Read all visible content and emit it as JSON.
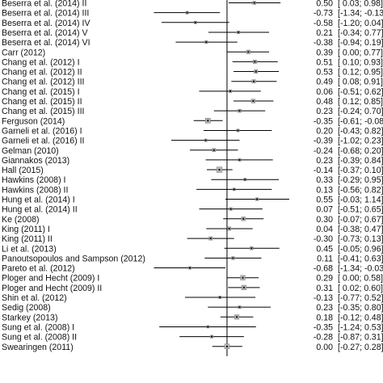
{
  "chart_data": {
    "type": "forest",
    "title": "",
    "xlabel": "",
    "ylabel": "",
    "x_range": [
      -1.45,
      1.2
    ],
    "null_line": 0,
    "studies": [
      {
        "label": "Beserra et al. (2014) II",
        "estimate": 0.5,
        "ci_low": 0.03,
        "ci_high": 0.98,
        "estimate_text": "0.50",
        "ci_text": "[ 0.03; 0.98]"
      },
      {
        "label": "Beserra et al. (2014) III",
        "estimate": -0.73,
        "ci_low": -1.34,
        "ci_high": -0.13,
        "estimate_text": "-0.73",
        "ci_text": "[-1.34; -0.13]"
      },
      {
        "label": "Beserra et al. (2014) IV",
        "estimate": -0.58,
        "ci_low": -1.2,
        "ci_high": 0.04,
        "estimate_text": "-0.58",
        "ci_text": "[-1.20; 0.04]"
      },
      {
        "label": "Beserra et al. (2014) V",
        "estimate": 0.21,
        "ci_low": -0.34,
        "ci_high": 0.77,
        "estimate_text": "0.21",
        "ci_text": "[-0.34; 0.77]"
      },
      {
        "label": "Beserra et al. (2014) VI",
        "estimate": -0.38,
        "ci_low": -0.94,
        "ci_high": 0.19,
        "estimate_text": "-0.38",
        "ci_text": "[-0.94; 0.19]"
      },
      {
        "label": "Carr (2012)",
        "estimate": 0.39,
        "ci_low": 0.0,
        "ci_high": 0.77,
        "estimate_text": "0.39",
        "ci_text": "[ 0.00; 0.77]"
      },
      {
        "label": "Chang et al. (2012) I",
        "estimate": 0.51,
        "ci_low": 0.1,
        "ci_high": 0.93,
        "estimate_text": "0.51",
        "ci_text": "[ 0.10; 0.93]"
      },
      {
        "label": "Chang et al. (2012) II",
        "estimate": 0.53,
        "ci_low": 0.12,
        "ci_high": 0.95,
        "estimate_text": "0.53",
        "ci_text": "[ 0.12; 0.95]"
      },
      {
        "label": "Chang et al. (2012) III",
        "estimate": 0.49,
        "ci_low": 0.08,
        "ci_high": 0.91,
        "estimate_text": "0.49",
        "ci_text": "[ 0.08; 0.91]"
      },
      {
        "label": "Chang et al. (2015) I",
        "estimate": 0.06,
        "ci_low": -0.51,
        "ci_high": 0.62,
        "estimate_text": "0.06",
        "ci_text": "[-0.51; 0.62]"
      },
      {
        "label": "Chang et al. (2015) II",
        "estimate": 0.48,
        "ci_low": 0.12,
        "ci_high": 0.85,
        "estimate_text": "0.48",
        "ci_text": "[ 0.12; 0.85]"
      },
      {
        "label": "Chang et al. (2015) III",
        "estimate": 0.23,
        "ci_low": -0.24,
        "ci_high": 0.7,
        "estimate_text": "0.23",
        "ci_text": "[-0.24; 0.70]"
      },
      {
        "label": "Ferguson (2014)",
        "estimate": -0.35,
        "ci_low": -0.61,
        "ci_high": -0.08,
        "estimate_text": "-0.35",
        "ci_text": "[-0.61; -0.08]"
      },
      {
        "label": "Garneli et al. (2016) I",
        "estimate": 0.2,
        "ci_low": -0.43,
        "ci_high": 0.82,
        "estimate_text": "0.20",
        "ci_text": "[-0.43; 0.82]"
      },
      {
        "label": "Garneli et al. (2016) II",
        "estimate": -0.39,
        "ci_low": -1.02,
        "ci_high": 0.23,
        "estimate_text": "-0.39",
        "ci_text": "[-1.02; 0.23]"
      },
      {
        "label": "Gelman (2010)",
        "estimate": -0.24,
        "ci_low": -0.68,
        "ci_high": 0.2,
        "estimate_text": "-0.24",
        "ci_text": "[-0.68; 0.20]"
      },
      {
        "label": "Giannakos (2013)",
        "estimate": 0.23,
        "ci_low": -0.39,
        "ci_high": 0.84,
        "estimate_text": "0.23",
        "ci_text": "[-0.39; 0.84]"
      },
      {
        "label": "Hall (2015)",
        "estimate": -0.14,
        "ci_low": -0.37,
        "ci_high": 0.1,
        "estimate_text": "-0.14",
        "ci_text": "[-0.37; 0.10]"
      },
      {
        "label": "Hawkins (2008) I",
        "estimate": 0.33,
        "ci_low": -0.29,
        "ci_high": 0.95,
        "estimate_text": "0.33",
        "ci_text": "[-0.29; 0.95]"
      },
      {
        "label": "Hawkins (2008) II",
        "estimate": 0.13,
        "ci_low": -0.56,
        "ci_high": 0.82,
        "estimate_text": "0.13",
        "ci_text": "[-0.56; 0.82]"
      },
      {
        "label": "Hung et al. (2014) I",
        "estimate": 0.55,
        "ci_low": -0.03,
        "ci_high": 1.14,
        "estimate_text": "0.55",
        "ci_text": "[-0.03; 1.14]"
      },
      {
        "label": "Hung et al. (2014) II",
        "estimate": 0.07,
        "ci_low": -0.51,
        "ci_high": 0.65,
        "estimate_text": "0.07",
        "ci_text": "[-0.51; 0.65]"
      },
      {
        "label": "Ke (2008)",
        "estimate": 0.3,
        "ci_low": -0.07,
        "ci_high": 0.67,
        "estimate_text": "0.30",
        "ci_text": "[-0.07; 0.67]"
      },
      {
        "label": "King (2011) I",
        "estimate": 0.04,
        "ci_low": -0.38,
        "ci_high": 0.47,
        "estimate_text": "0.04",
        "ci_text": "[-0.38; 0.47]"
      },
      {
        "label": "King (2011) II",
        "estimate": -0.3,
        "ci_low": -0.73,
        "ci_high": 0.13,
        "estimate_text": "-0.30",
        "ci_text": "[-0.73; 0.13]"
      },
      {
        "label": "Li et al. (2013)",
        "estimate": 0.45,
        "ci_low": -0.05,
        "ci_high": 0.96,
        "estimate_text": "0.45",
        "ci_text": "[-0.05; 0.96]"
      },
      {
        "label": "Panoutsopoulos and Sampson (2012)",
        "estimate": 0.11,
        "ci_low": -0.41,
        "ci_high": 0.63,
        "estimate_text": "0.11",
        "ci_text": "[-0.41; 0.63]"
      },
      {
        "label": "Pareto et al. (2012)",
        "estimate": -0.68,
        "ci_low": -1.34,
        "ci_high": -0.03,
        "estimate_text": "-0.68",
        "ci_text": "[-1.34; -0.03]"
      },
      {
        "label": "Ploger and Hecht (2009) I",
        "estimate": 0.29,
        "ci_low": 0.0,
        "ci_high": 0.58,
        "estimate_text": "0.29",
        "ci_text": "[ 0.00; 0.58]"
      },
      {
        "label": "Ploger and Hecht (2009) II",
        "estimate": 0.31,
        "ci_low": 0.02,
        "ci_high": 0.6,
        "estimate_text": "0.31",
        "ci_text": "[ 0.02; 0.60]"
      },
      {
        "label": "Shin et al. (2012)",
        "estimate": -0.13,
        "ci_low": -0.77,
        "ci_high": 0.52,
        "estimate_text": "-0.13",
        "ci_text": "[-0.77; 0.52]"
      },
      {
        "label": "Sedig (2008)",
        "estimate": 0.23,
        "ci_low": -0.35,
        "ci_high": 0.8,
        "estimate_text": "0.23",
        "ci_text": "[-0.35; 0.80]"
      },
      {
        "label": "Starkey (2013)",
        "estimate": 0.18,
        "ci_low": -0.12,
        "ci_high": 0.48,
        "estimate_text": "0.18",
        "ci_text": "[-0.12; 0.48]"
      },
      {
        "label": "Sung et al. (2008) I",
        "estimate": -0.35,
        "ci_low": -1.24,
        "ci_high": 0.53,
        "estimate_text": "-0.35",
        "ci_text": "[-1.24; 0.53]"
      },
      {
        "label": "Sung et al. (2008) II",
        "estimate": -0.28,
        "ci_low": -0.87,
        "ci_high": 0.31,
        "estimate_text": "-0.28",
        "ci_text": "[-0.87; 0.31]"
      },
      {
        "label": "Swearingen (2011)",
        "estimate": 0.0,
        "ci_low": -0.27,
        "ci_high": 0.28,
        "estimate_text": "0.00",
        "ci_text": "[-0.27; 0.28]"
      }
    ]
  }
}
